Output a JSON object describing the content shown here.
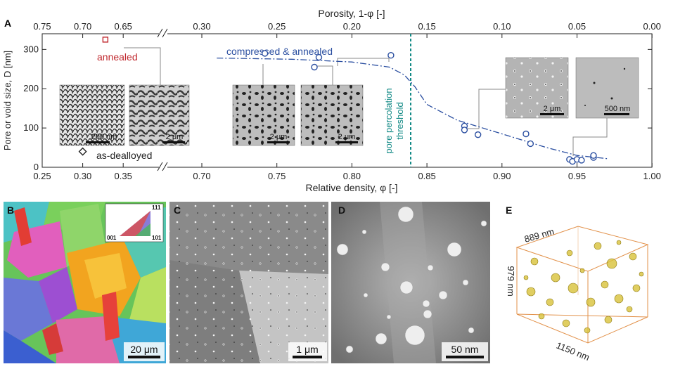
{
  "panel_labels": [
    "A",
    "B",
    "C",
    "D",
    "E"
  ],
  "chart_data": {
    "type": "scatter",
    "panel": "A",
    "xlabel": "Relative density, φ  [-]",
    "top_xlabel": "Porosity, 1-φ  [-]",
    "ylabel": "Pore or void size, D  [nm]",
    "x_tick_labels": [
      "0.25",
      "0.30",
      "0.35",
      "0.70",
      "0.75",
      "0.80",
      "0.85",
      "0.90",
      "0.95",
      "1.00"
    ],
    "top_x_tick_labels": [
      "0.75",
      "0.70",
      "0.65",
      "0.30",
      "0.25",
      "0.20",
      "0.15",
      "0.10",
      "0.05",
      "0.00"
    ],
    "y_ticks": [
      0,
      100,
      200,
      300
    ],
    "ylim": [
      0,
      340
    ],
    "axis_break": "between 0.35 and 0.70",
    "threshold_x": 0.84,
    "threshold_label": [
      "pore percolation",
      "threshold"
    ],
    "series": [
      {
        "name": "compressed & annealed",
        "marker": "circle",
        "color": "#2a4ea0",
        "x": [
          0.742,
          0.775,
          0.778,
          0.826,
          0.875,
          0.875,
          0.884,
          0.916,
          0.919,
          0.945,
          0.947,
          0.95,
          0.953,
          0.961,
          0.961
        ],
        "y": [
          290,
          255,
          280,
          285,
          105,
          95,
          83,
          85,
          60,
          20,
          15,
          20,
          18,
          25,
          30
        ]
      },
      {
        "name": "annealed",
        "marker": "square",
        "color": "#c0272d",
        "x": [
          0.328
        ],
        "y": [
          325
        ]
      },
      {
        "name": "as-dealloyed",
        "marker": "diamond",
        "color": "#222222",
        "x": [
          0.3
        ],
        "y": [
          40
        ]
      }
    ],
    "trend_line": {
      "style": "dash-dot",
      "color": "#2a4ea0",
      "x": [
        0.71,
        0.76,
        0.8,
        0.825,
        0.835,
        0.842,
        0.85,
        0.87,
        0.9,
        0.93,
        0.95,
        0.97
      ],
      "y": [
        278,
        275,
        268,
        255,
        235,
        205,
        160,
        120,
        85,
        50,
        30,
        22
      ]
    },
    "insets": [
      {
        "scale_bar": "200 nm"
      },
      {
        "scale_bar": "2 μm"
      },
      {
        "scale_bar": "2 μm"
      },
      {
        "scale_bar": "2 μm"
      },
      {
        "scale_bar": "2 μm"
      },
      {
        "scale_bar": "500 nm"
      }
    ]
  },
  "panel_b": {
    "scale_bar": "20 μm",
    "legend_labels": [
      "111",
      "001",
      "101"
    ]
  },
  "panel_c": {
    "scale_bar": "1 μm"
  },
  "panel_d": {
    "scale_bar": "50 nm"
  },
  "panel_e": {
    "dims": [
      "889 nm",
      "979 nm",
      "1150 nm"
    ]
  },
  "colors": {
    "series_blue": "#2a4ea0",
    "annealed_red": "#c0272d",
    "threshold_teal": "#138a86",
    "box_orange": "#e2914a",
    "pore_yellow": "#d8c23a"
  }
}
